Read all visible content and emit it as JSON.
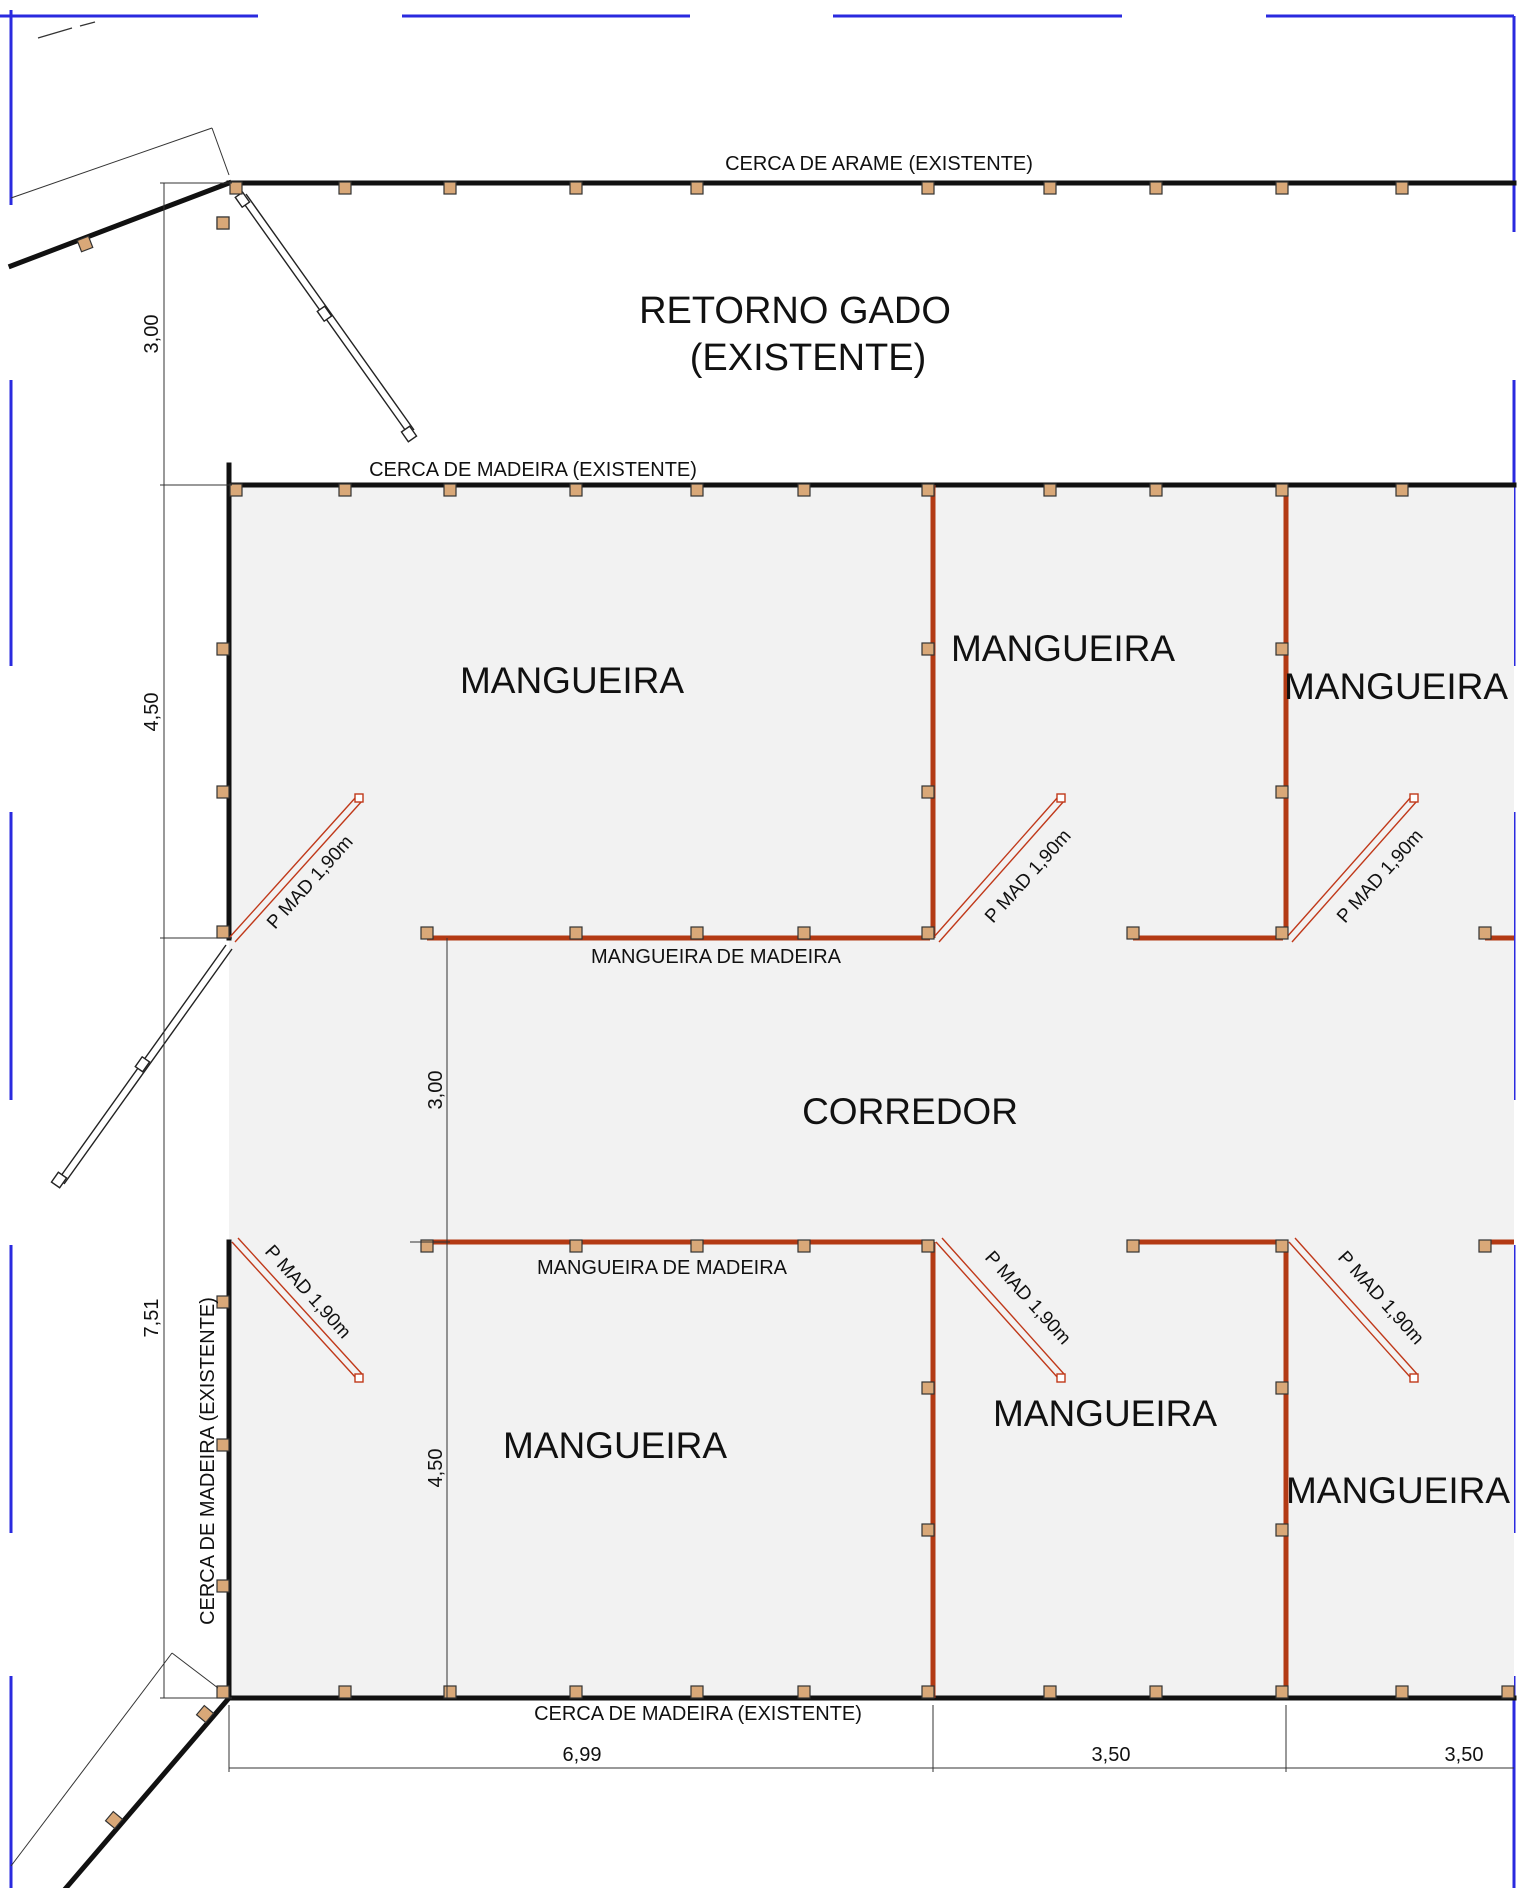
{
  "areas": {
    "retorno_gado_line1": "RETORNO GADO",
    "retorno_gado_line2": "(EXISTENTE)",
    "corredor": "CORREDOR",
    "mangueira": "MANGUEIRA"
  },
  "fence_labels": {
    "cerca_arame": "CERCA DE ARAME  (EXISTENTE)",
    "cerca_madeira_top": "CERCA DE MADEIRA  (EXISTENTE)",
    "cerca_madeira_bottom": "CERCA DE MADEIRA  (EXISTENTE)",
    "cerca_madeira_left": "CERCA DE MADEIRA  (EXISTENTE)",
    "mangueira_madeira_upper": "MANGUEIRA DE MADEIRA",
    "mangueira_madeira_lower": "MANGUEIRA DE MADEIRA"
  },
  "gate_label": "P MAD 1,90m",
  "dimensions": {
    "top_left": "3,00",
    "upper_left": "4,50",
    "total_left": "7,51",
    "corridor": "3,00",
    "lower_inner": "4,50",
    "bottom_1": "6,99",
    "bottom_2": "3,50",
    "bottom_3": "3,50"
  },
  "colors": {
    "existing_fence": "#111111",
    "new_fence": "#b33a14",
    "post_fill": "#d9a878",
    "area_fill": "#f2f2f2",
    "border_dash": "#2a2adf"
  }
}
